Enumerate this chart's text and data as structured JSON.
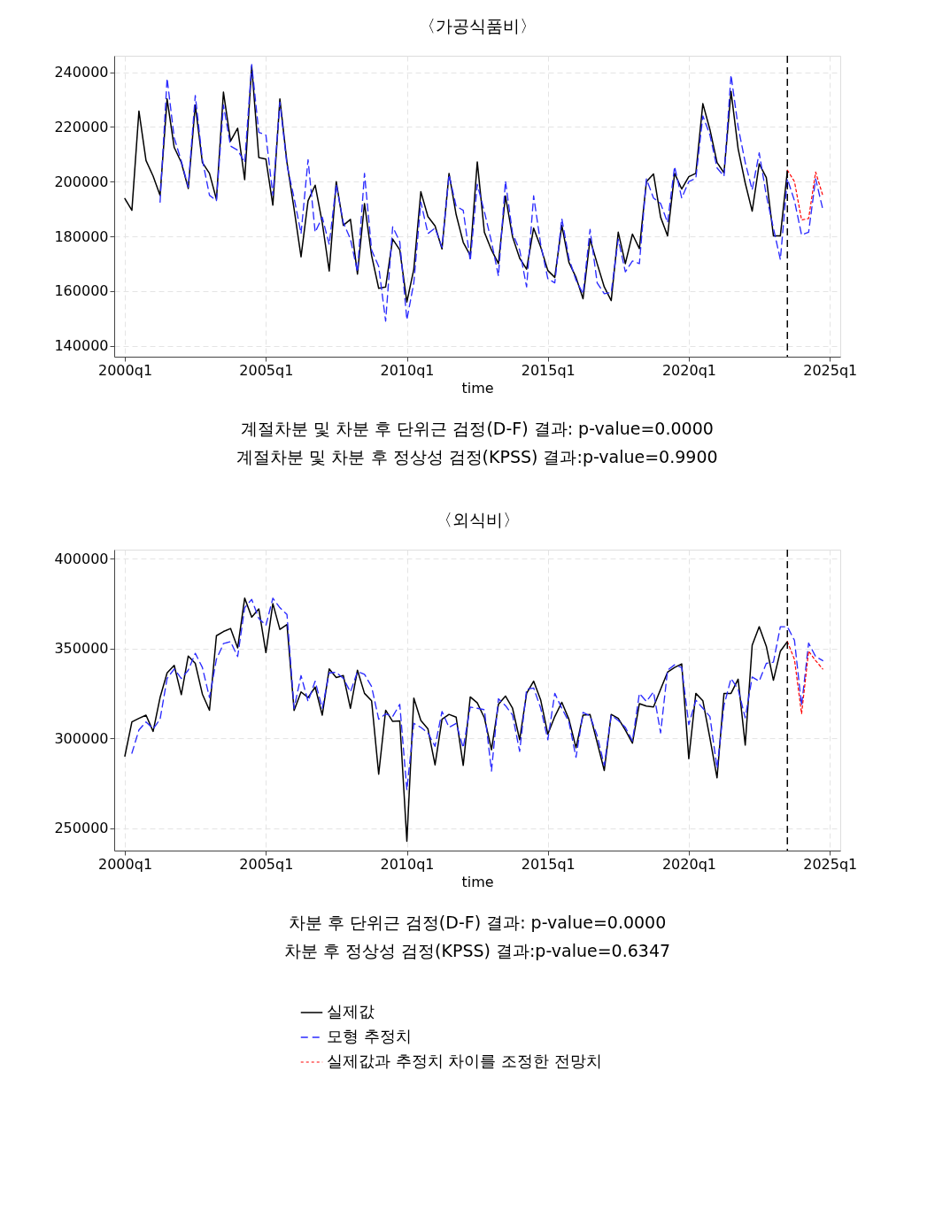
{
  "chart_data": [
    {
      "type": "line",
      "title": "〈가공식품비〉",
      "xlabel": "time",
      "grid": true,
      "x": [
        "2000-01",
        "2000-04",
        "2000-07",
        "2000-10",
        "2001-01",
        "2001-04",
        "2001-07",
        "2001-10",
        "2002-01",
        "2002-04",
        "2002-07",
        "2002-10",
        "2003-01",
        "2003-04",
        "2003-07",
        "2003-10",
        "2004-01",
        "2004-04",
        "2004-07",
        "2004-10",
        "2005-01",
        "2005-04",
        "2005-07",
        "2005-10",
        "2006-01",
        "2006-04",
        "2006-07",
        "2006-10",
        "2007-01",
        "2007-04",
        "2007-07",
        "2007-10",
        "2008-01",
        "2008-04",
        "2008-07",
        "2008-10",
        "2009-01",
        "2009-04",
        "2009-07",
        "2009-10",
        "2010-01",
        "2010-04",
        "2010-07",
        "2010-10",
        "2011-01",
        "2011-04",
        "2011-07",
        "2011-10",
        "2012-01",
        "2012-04",
        "2012-07",
        "2012-10",
        "2013-01",
        "2013-04",
        "2013-07",
        "2013-10",
        "2014-01",
        "2014-04",
        "2014-07",
        "2014-10",
        "2015-01",
        "2015-04",
        "2015-07",
        "2015-10",
        "2016-01",
        "2016-04",
        "2016-07",
        "2016-10",
        "2017-01",
        "2017-04",
        "2017-07",
        "2017-10",
        "2018-01",
        "2018-04",
        "2018-07",
        "2018-10",
        "2019-01",
        "2019-04",
        "2019-07",
        "2019-10",
        "2020-01",
        "2020-04",
        "2020-07",
        "2020-10",
        "2021-01",
        "2021-04",
        "2021-07",
        "2021-10",
        "2022-01",
        "2022-04",
        "2022-07",
        "2022-10",
        "2023-01",
        "2023-04",
        "2023-07",
        "2023-10",
        "2024-01",
        "2024-04",
        "2024-07",
        "2024-10"
      ],
      "xlim": [
        "1999-08-16",
        "2025-05-16"
      ],
      "xticks": [
        {
          "value": "2000-01",
          "label": "2000q1"
        },
        {
          "value": "2005-01",
          "label": "2005q1"
        },
        {
          "value": "2010-01",
          "label": "2010q1"
        },
        {
          "value": "2015-01",
          "label": "2015q1"
        },
        {
          "value": "2020-01",
          "label": "2020q1"
        },
        {
          "value": "2025-01",
          "label": "2025q1"
        }
      ],
      "ylim": [
        136000,
        246000
      ],
      "yticks": [
        140000,
        160000,
        180000,
        200000,
        220000,
        240000
      ],
      "series": [
        {
          "color": "#000000",
          "line_style": "solid",
          "values": [
            193800,
            189500,
            225800,
            207700,
            202000,
            195000,
            230200,
            212500,
            207000,
            197500,
            228000,
            207000,
            203000,
            193500,
            232700,
            214800,
            219500,
            200700,
            242200,
            208800,
            208200,
            191400,
            230200,
            207000,
            190000,
            172500,
            193000,
            198700,
            185000,
            167300,
            200000,
            184000,
            186200,
            166200,
            192000,
            173000,
            161000,
            161500,
            179000,
            175000,
            156000,
            168000,
            196300,
            187200,
            183800,
            175400,
            203000,
            188000,
            177800,
            173000,
            207200,
            181500,
            175000,
            170000,
            194800,
            179800,
            172000,
            168000,
            183000,
            176000,
            167500,
            165000,
            184000,
            170500,
            165000,
            157200,
            179000,
            170000,
            161500,
            156500,
            181500,
            170000,
            180800,
            175500,
            200000,
            202800,
            187000,
            180200,
            203000,
            197300,
            201800,
            203000,
            228500,
            219000,
            207000,
            203200,
            233000,
            212000,
            199500,
            189200,
            206500,
            201500,
            180200,
            180200,
            204000,
            null,
            null,
            null,
            null,
            null
          ]
        },
        {
          "color": "#2b2bff",
          "line_style": "dashed",
          "values": [
            null,
            null,
            null,
            null,
            null,
            192500,
            237800,
            216000,
            207500,
            198000,
            231500,
            208000,
            195000,
            193000,
            228000,
            213000,
            211500,
            207000,
            242800,
            218000,
            217000,
            195000,
            229000,
            206000,
            194000,
            181000,
            208000,
            181500,
            187000,
            177000,
            199000,
            185000,
            179000,
            167000,
            203000,
            175000,
            169000,
            149000,
            183500,
            178000,
            149500,
            163000,
            192500,
            181000,
            183000,
            176000,
            202500,
            191000,
            189500,
            171000,
            199000,
            189000,
            178000,
            165500,
            200200,
            181000,
            175000,
            161500,
            194800,
            177000,
            164500,
            163000,
            186500,
            172000,
            164000,
            159000,
            182500,
            163000,
            159000,
            159500,
            179000,
            167000,
            171000,
            170000,
            201000,
            194000,
            192000,
            185000,
            205500,
            194000,
            200000,
            201200,
            224000,
            217000,
            205000,
            202000,
            239000,
            220000,
            207000,
            197000,
            210500,
            195000,
            183000,
            171500,
            201000,
            193000,
            180500,
            181500,
            201000,
            190000
          ]
        },
        {
          "color": "#ff0000",
          "line_style": "dotted",
          "values": [
            null,
            null,
            null,
            null,
            null,
            null,
            null,
            null,
            null,
            null,
            null,
            null,
            null,
            null,
            null,
            null,
            null,
            null,
            null,
            null,
            null,
            null,
            null,
            null,
            null,
            null,
            null,
            null,
            null,
            null,
            null,
            null,
            null,
            null,
            null,
            null,
            null,
            null,
            null,
            null,
            null,
            null,
            null,
            null,
            null,
            null,
            null,
            null,
            null,
            null,
            null,
            null,
            null,
            null,
            null,
            null,
            null,
            null,
            null,
            null,
            null,
            null,
            null,
            null,
            null,
            null,
            null,
            null,
            null,
            null,
            null,
            null,
            null,
            null,
            null,
            null,
            null,
            null,
            null,
            null,
            null,
            null,
            null,
            null,
            null,
            null,
            null,
            null,
            null,
            null,
            null,
            null,
            null,
            null,
            204200,
            200000,
            186000,
            186500,
            203500,
            195000
          ]
        }
      ],
      "ref_lines": [
        {
          "axis": "x",
          "value": "2023-07",
          "color": "#000000",
          "line_style": "dashed"
        }
      ],
      "annotations": [
        "계절차분 및 차분 후 단위근 검정(D-F) 결과: p-value=0.0000",
        "계절차분 및 차분 후 정상성 검정(KPSS) 결과:p-value=0.9900"
      ]
    },
    {
      "type": "line",
      "title": "〈외식비〉",
      "xlabel": "time",
      "grid": true,
      "legend": "bottom",
      "x": [
        "2000-01",
        "2000-04",
        "2000-07",
        "2000-10",
        "2001-01",
        "2001-04",
        "2001-07",
        "2001-10",
        "2002-01",
        "2002-04",
        "2002-07",
        "2002-10",
        "2003-01",
        "2003-04",
        "2003-07",
        "2003-10",
        "2004-01",
        "2004-04",
        "2004-07",
        "2004-10",
        "2005-01",
        "2005-04",
        "2005-07",
        "2005-10",
        "2006-01",
        "2006-04",
        "2006-07",
        "2006-10",
        "2007-01",
        "2007-04",
        "2007-07",
        "2007-10",
        "2008-01",
        "2008-04",
        "2008-07",
        "2008-10",
        "2009-01",
        "2009-04",
        "2009-07",
        "2009-10",
        "2010-01",
        "2010-04",
        "2010-07",
        "2010-10",
        "2011-01",
        "2011-04",
        "2011-07",
        "2011-10",
        "2012-01",
        "2012-04",
        "2012-07",
        "2012-10",
        "2013-01",
        "2013-04",
        "2013-07",
        "2013-10",
        "2014-01",
        "2014-04",
        "2014-07",
        "2014-10",
        "2015-01",
        "2015-04",
        "2015-07",
        "2015-10",
        "2016-01",
        "2016-04",
        "2016-07",
        "2016-10",
        "2017-01",
        "2017-04",
        "2017-07",
        "2017-10",
        "2018-01",
        "2018-04",
        "2018-07",
        "2018-10",
        "2019-01",
        "2019-04",
        "2019-07",
        "2019-10",
        "2020-01",
        "2020-04",
        "2020-07",
        "2020-10",
        "2021-01",
        "2021-04",
        "2021-07",
        "2021-10",
        "2022-01",
        "2022-04",
        "2022-07",
        "2022-10",
        "2023-01",
        "2023-04",
        "2023-07",
        "2023-10",
        "2024-01",
        "2024-04",
        "2024-07",
        "2024-10"
      ],
      "xlim": [
        "1999-08-16",
        "2025-05-16"
      ],
      "xticks": [
        {
          "value": "2000-01",
          "label": "2000q1"
        },
        {
          "value": "2005-01",
          "label": "2005q1"
        },
        {
          "value": "2010-01",
          "label": "2010q1"
        },
        {
          "value": "2015-01",
          "label": "2015q1"
        },
        {
          "value": "2020-01",
          "label": "2020q1"
        },
        {
          "value": "2025-01",
          "label": "2025q1"
        }
      ],
      "ylim": [
        237500,
        405000
      ],
      "yticks": [
        250000,
        300000,
        350000,
        400000
      ],
      "series": [
        {
          "name": "실제값",
          "color": "#000000",
          "line_style": "solid",
          "values": [
            290100,
            309100,
            311100,
            312900,
            303800,
            322700,
            336400,
            340600,
            324300,
            345800,
            341700,
            324600,
            315600,
            357100,
            359400,
            361100,
            350300,
            378000,
            367400,
            372000,
            347700,
            375000,
            360600,
            363300,
            315500,
            325800,
            322700,
            328500,
            312900,
            338600,
            333800,
            334900,
            316700,
            337900,
            325000,
            320900,
            280000,
            315600,
            309400,
            309700,
            242700,
            322400,
            309900,
            305200,
            285200,
            310600,
            313300,
            311800,
            284900,
            323000,
            319700,
            311400,
            293600,
            318900,
            323500,
            316700,
            299200,
            325000,
            331800,
            321200,
            302300,
            312100,
            320000,
            310600,
            294700,
            312900,
            313200,
            297700,
            282100,
            313300,
            311100,
            304600,
            297300,
            319300,
            317900,
            317400,
            327300,
            336800,
            339400,
            341400,
            288600,
            325000,
            320900,
            300000,
            278000,
            325000,
            325000,
            332900,
            296200,
            351800,
            362100,
            351200,
            332300,
            348500,
            353800,
            null,
            null,
            null,
            null,
            null
          ]
        },
        {
          "name": "모형 추정치",
          "color": "#2b2bff",
          "line_style": "dashed",
          "values": [
            null,
            291700,
            304600,
            309100,
            305300,
            310600,
            333300,
            338600,
            333300,
            337900,
            347300,
            339400,
            322700,
            344000,
            352700,
            353800,
            345500,
            372700,
            377300,
            366700,
            362900,
            378000,
            372700,
            368900,
            316700,
            334900,
            320500,
            331800,
            316700,
            336400,
            336700,
            333300,
            325800,
            337100,
            335600,
            328800,
            310600,
            313600,
            312100,
            318900,
            271200,
            308300,
            306100,
            303000,
            295500,
            314900,
            306100,
            308300,
            294700,
            317400,
            316700,
            315900,
            281800,
            322000,
            318200,
            312900,
            292700,
            327300,
            328000,
            316700,
            299200,
            325000,
            316700,
            309100,
            289400,
            314400,
            312400,
            301500,
            284900,
            312900,
            309900,
            306100,
            298500,
            325000,
            320500,
            325800,
            303000,
            337900,
            340900,
            339400,
            307600,
            321200,
            316700,
            312100,
            283300,
            318200,
            333300,
            327300,
            311400,
            334100,
            331800,
            341700,
            342400,
            362100,
            362100,
            354500,
            318200,
            353000,
            345500,
            343200
          ]
        },
        {
          "name": "실제값과 추정치 차이를 조정한 전망치",
          "color": "#ff0000",
          "line_style": "dotted",
          "values": [
            null,
            null,
            null,
            null,
            null,
            null,
            null,
            null,
            null,
            null,
            null,
            null,
            null,
            null,
            null,
            null,
            null,
            null,
            null,
            null,
            null,
            null,
            null,
            null,
            null,
            null,
            null,
            null,
            null,
            null,
            null,
            null,
            null,
            null,
            null,
            null,
            null,
            null,
            null,
            null,
            null,
            null,
            null,
            null,
            null,
            null,
            null,
            null,
            null,
            null,
            null,
            null,
            null,
            null,
            null,
            null,
            null,
            null,
            null,
            null,
            null,
            null,
            null,
            null,
            null,
            null,
            null,
            null,
            null,
            null,
            null,
            null,
            null,
            null,
            null,
            null,
            null,
            null,
            null,
            null,
            null,
            null,
            null,
            null,
            null,
            null,
            null,
            null,
            null,
            null,
            null,
            null,
            null,
            null,
            353800,
            343900,
            313600,
            348500,
            343200,
            338600
          ]
        }
      ],
      "ref_lines": [
        {
          "axis": "x",
          "value": "2023-07",
          "color": "#000000",
          "line_style": "dashed"
        }
      ],
      "annotations": [
        "차분 후 단위근 검정(D-F) 결과: p-value=0.0000",
        "차분 후 정상성 검정(KPSS) 결과:p-value=0.6347"
      ]
    }
  ]
}
